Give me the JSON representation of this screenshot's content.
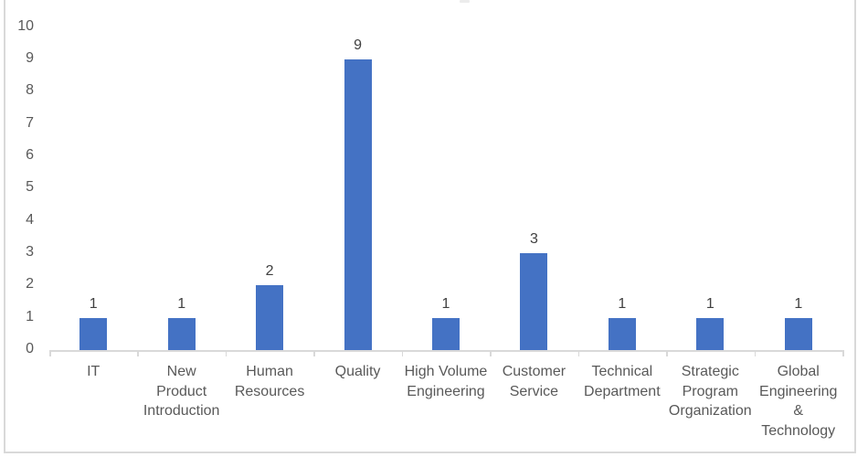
{
  "chart_data": {
    "type": "bar",
    "categories": [
      "IT",
      "New Product Introduction",
      "Human Resources",
      "Quality",
      "High Volume Engineering",
      "Customer Service",
      "Technical Department",
      "Strategic Program Organization",
      "Global Engineering & Technology"
    ],
    "category_label_lines": [
      [
        "IT"
      ],
      [
        "New",
        "Product",
        "Introduction"
      ],
      [
        "Human",
        "Resources"
      ],
      [
        "Quality"
      ],
      [
        "High Volume",
        "Engineering"
      ],
      [
        "Customer",
        "Service"
      ],
      [
        "Technical",
        "Department"
      ],
      [
        "Strategic",
        "Program",
        "Organization"
      ],
      [
        "Global",
        "Engineering",
        "&",
        "Technology"
      ]
    ],
    "values": [
      1,
      1,
      2,
      9,
      1,
      3,
      1,
      1,
      1
    ],
    "data_labels": [
      "1",
      "1",
      "2",
      "9",
      "1",
      "3",
      "1",
      "1",
      "1"
    ],
    "yticks": [
      0,
      1,
      2,
      3,
      4,
      5,
      6,
      7,
      8,
      9,
      10
    ],
    "ylim": [
      0,
      10
    ],
    "grid": false,
    "legend_visible": false,
    "data_labels_visible": true,
    "colors": {
      "bar": "#4472C4",
      "axis": "#D9D9D9",
      "frame_border": "#D9D9D9",
      "tick_text": "#595959",
      "data_label": "#404040",
      "background": "#FFFFFF"
    }
  }
}
